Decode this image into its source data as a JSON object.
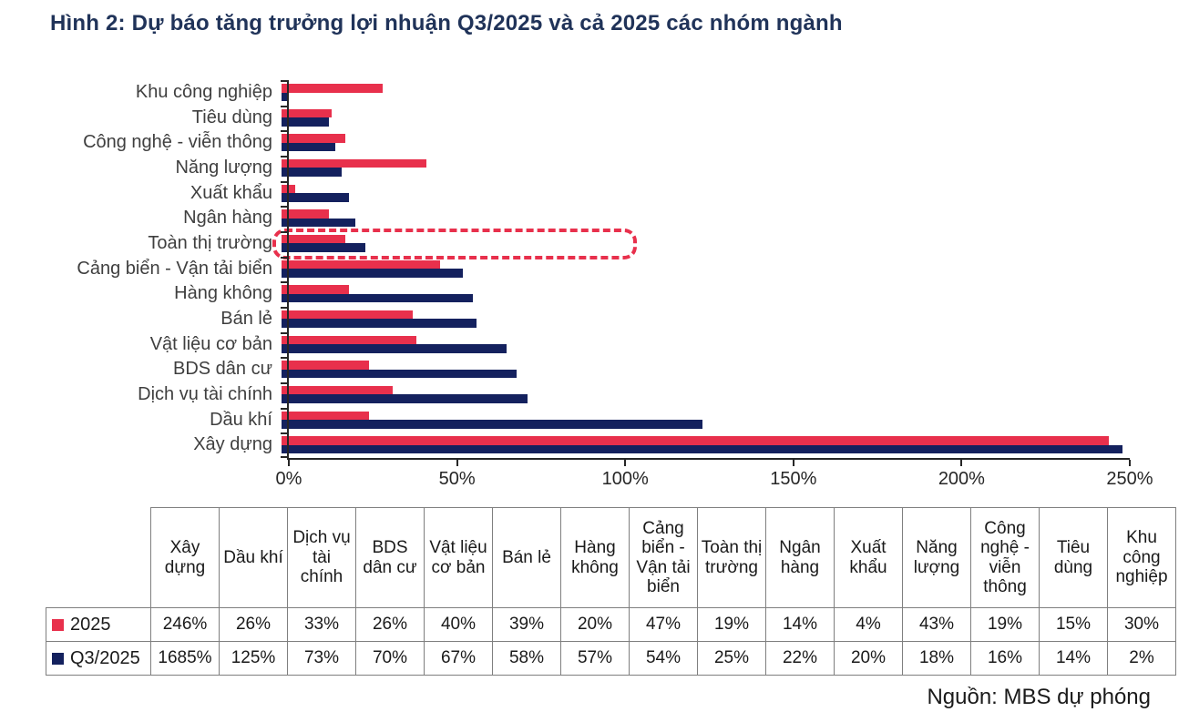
{
  "figure": {
    "title": "Hình 2: Dự báo tăng trưởng lợi nhuận Q3/2025 và cả 2025 các nhóm ngành",
    "source": "Nguồn: MBS dự phóng"
  },
  "colors": {
    "series_2025": "#e8304c",
    "series_q3_2025": "#14215e",
    "title_text": "#203359",
    "axis": "#262626",
    "table_border": "#7f7f7f",
    "highlight_box": "#e8304c"
  },
  "chart_data": {
    "type": "bar",
    "orientation": "horizontal",
    "title": "Hình 2: Dự báo tăng trưởng lợi nhuận Q3/2025 và cả 2025 các nhóm ngành",
    "categories": [
      "Khu công nghiệp",
      "Tiêu dùng",
      "Công nghệ - viễn thông",
      "Năng lượng",
      "Xuất khẩu",
      "Ngân hàng",
      "Toàn thị trường",
      "Cảng biển - Vận tải biển",
      "Hàng không",
      "Bán lẻ",
      "Vật liệu cơ bản",
      "BDS dân cư",
      "Dịch vụ tài chính",
      "Dầu khí",
      "Xây dựng"
    ],
    "series": [
      {
        "name": "2025",
        "color": "#e8304c",
        "values": [
          30,
          15,
          19,
          43,
          4,
          14,
          19,
          47,
          20,
          39,
          40,
          26,
          33,
          26,
          246
        ]
      },
      {
        "name": "Q3/2025",
        "color": "#14215e",
        "values": [
          2,
          14,
          16,
          18,
          20,
          22,
          25,
          54,
          57,
          58,
          67,
          70,
          73,
          125,
          1685
        ]
      }
    ],
    "xlabel": "",
    "ylabel": "",
    "xlim": [
      0,
      250
    ],
    "x_tick_labels": [
      "0%",
      "50%",
      "100%",
      "150%",
      "200%",
      "250%"
    ],
    "grid": false,
    "note": "values are percent; bars longer than 250% are clipped at axis end",
    "highlight": {
      "category": "Toàn thị trường",
      "style": "red-dashed-rounded-box"
    }
  },
  "table": {
    "columns": [
      "Xây dựng",
      "Dầu khí",
      "Dịch vụ tài chính",
      "BDS dân cư",
      "Vật liệu cơ bản",
      "Bán lẻ",
      "Hàng không",
      "Cảng biển - Vận tải biển",
      "Toàn thị trường",
      "Ngân hàng",
      "Xuất khẩu",
      "Năng lượng",
      "Công nghệ - viễn thông",
      "Tiêu dùng",
      "Khu công nghiệp"
    ],
    "rows": [
      {
        "label": "2025",
        "swatch": "#e8304c",
        "values": [
          "246%",
          "26%",
          "33%",
          "26%",
          "40%",
          "39%",
          "20%",
          "47%",
          "19%",
          "14%",
          "4%",
          "43%",
          "19%",
          "15%",
          "30%"
        ]
      },
      {
        "label": "Q3/2025",
        "swatch": "#14215e",
        "values": [
          "1685%",
          "125%",
          "73%",
          "70%",
          "67%",
          "58%",
          "57%",
          "54%",
          "25%",
          "22%",
          "20%",
          "18%",
          "16%",
          "14%",
          "2%"
        ]
      }
    ]
  }
}
